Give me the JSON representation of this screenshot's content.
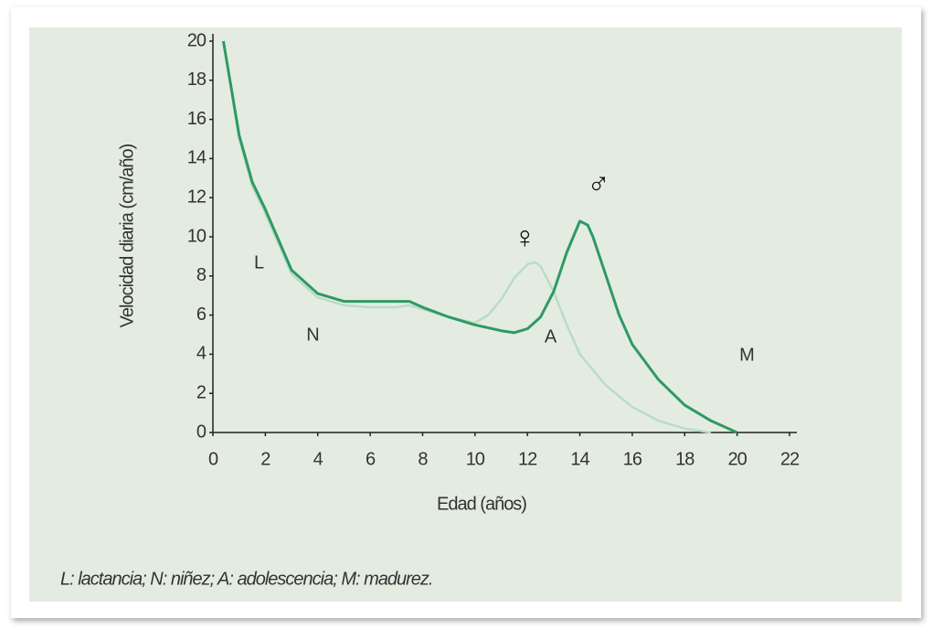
{
  "chart_data": {
    "type": "line",
    "x_label": "Edad (años)",
    "y_label": "Velocidad diaria (cm/año)",
    "xlim": [
      0,
      22
    ],
    "xticks": [
      0,
      2,
      4,
      6,
      8,
      10,
      12,
      14,
      16,
      18,
      20,
      22
    ],
    "ylim": [
      0,
      20
    ],
    "yticks": [
      0,
      2,
      4,
      6,
      8,
      10,
      12,
      14,
      16,
      18,
      20
    ],
    "grid": false,
    "series": [
      {
        "name": "♀",
        "color": "#b9dcc6",
        "x": [
          0.4,
          1,
          1.5,
          2,
          3,
          4,
          5,
          6,
          7,
          7.5,
          8,
          9,
          10,
          10.5,
          11,
          11.5,
          12,
          12.3,
          12.5,
          13,
          13.5,
          14,
          15,
          16,
          17,
          18,
          19
        ],
        "values": [
          20,
          15,
          12.6,
          11.2,
          8.1,
          6.9,
          6.5,
          6.4,
          6.4,
          6.5,
          6.3,
          5.9,
          5.6,
          6.0,
          6.8,
          7.9,
          8.6,
          8.7,
          8.5,
          7.2,
          5.5,
          4.0,
          2.4,
          1.3,
          0.6,
          0.2,
          0
        ]
      },
      {
        "name": "♂",
        "color": "#2e9a63",
        "x": [
          0.4,
          1,
          1.5,
          2,
          3,
          4,
          5,
          6,
          7,
          7.5,
          8,
          9,
          10,
          11,
          11.5,
          12,
          12.5,
          13,
          13.5,
          14,
          14.3,
          14.5,
          15,
          15.5,
          16,
          17,
          18,
          19,
          20
        ],
        "values": [
          20,
          15.2,
          12.8,
          11.4,
          8.3,
          7.1,
          6.7,
          6.7,
          6.7,
          6.7,
          6.4,
          5.9,
          5.5,
          5.2,
          5.1,
          5.3,
          5.9,
          7.2,
          9.2,
          10.8,
          10.6,
          10.0,
          8.0,
          6.0,
          4.5,
          2.7,
          1.4,
          0.6,
          0
        ]
      }
    ],
    "stage_labels": [
      "L",
      "N",
      "A",
      "M"
    ],
    "caption": "L: lactancia; N: niñez; A: adolescencia; M: madurez."
  }
}
